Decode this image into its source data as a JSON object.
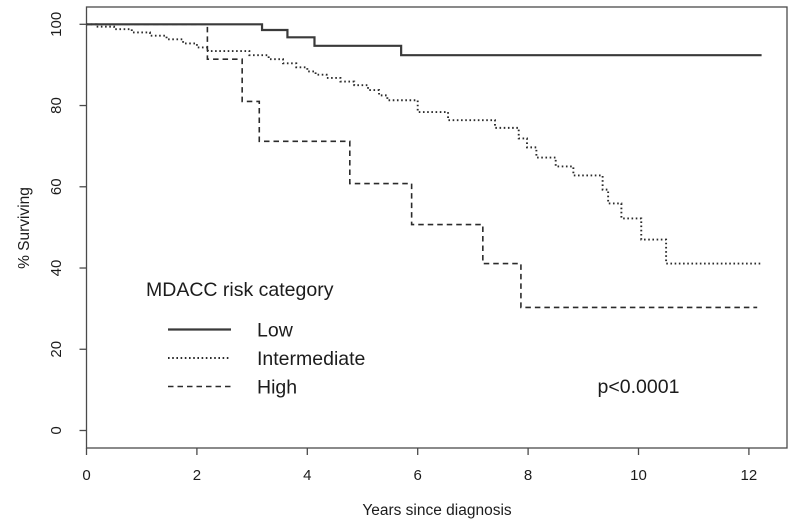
{
  "chart_data": {
    "type": "line",
    "subtype": "kaplan-meier-step-curves",
    "title": "",
    "xlabel": "Years since diagnosis",
    "ylabel": "% Surviving",
    "xlim": [
      0,
      12.68
    ],
    "ylim": [
      0,
      104
    ],
    "xticks": [
      0,
      2,
      4,
      6,
      8,
      10,
      12
    ],
    "yticks": [
      0,
      20,
      40,
      60,
      80,
      100
    ],
    "grid": false,
    "frame": true,
    "legend": {
      "title": "MDACC risk category",
      "position": "inside-lower-left",
      "entries": [
        {
          "label": "Low",
          "line_style": "solid"
        },
        {
          "label": "Intermediate",
          "line_style": "dotted"
        },
        {
          "label": "High",
          "line_style": "dashed"
        }
      ]
    },
    "annotation": {
      "text": "p<0.0001",
      "x": 10.0,
      "y": 11
    },
    "series": [
      {
        "name": "Low",
        "line_style": "solid",
        "end_x": 12.23,
        "steps": [
          [
            0,
            100
          ],
          [
            3.18,
            98.6
          ],
          [
            3.64,
            96.8
          ],
          [
            4.13,
            94.7
          ],
          [
            5.7,
            92.4
          ]
        ]
      },
      {
        "name": "Intermediate",
        "line_style": "dotted",
        "end_x": 12.23,
        "steps": [
          [
            0,
            100
          ],
          [
            0.18,
            99.4
          ],
          [
            0.5,
            98.8
          ],
          [
            0.82,
            98.0
          ],
          [
            1.15,
            97.2
          ],
          [
            1.45,
            96.3
          ],
          [
            1.75,
            95.3
          ],
          [
            2.0,
            94.3
          ],
          [
            2.2,
            93.4
          ],
          [
            2.95,
            92.4
          ],
          [
            3.3,
            91.4
          ],
          [
            3.56,
            90.4
          ],
          [
            3.8,
            89.4
          ],
          [
            4.0,
            88.4
          ],
          [
            4.15,
            87.6
          ],
          [
            4.35,
            86.8
          ],
          [
            4.6,
            85.9
          ],
          [
            4.85,
            85.0
          ],
          [
            5.1,
            83.8
          ],
          [
            5.3,
            82.5
          ],
          [
            5.45,
            81.3
          ],
          [
            6.0,
            78.4
          ],
          [
            6.55,
            76.4
          ],
          [
            7.4,
            74.5
          ],
          [
            7.83,
            71.9
          ],
          [
            7.98,
            69.7
          ],
          [
            8.15,
            67.2
          ],
          [
            8.5,
            65.0
          ],
          [
            8.82,
            62.8
          ],
          [
            9.35,
            59.3
          ],
          [
            9.45,
            55.9
          ],
          [
            9.69,
            52.2
          ],
          [
            10.05,
            47.0
          ],
          [
            10.5,
            41.1
          ]
        ]
      },
      {
        "name": "High",
        "line_style": "dashed",
        "end_x": 12.15,
        "steps": [
          [
            0,
            100
          ],
          [
            2.19,
            91.4
          ],
          [
            2.82,
            81.0
          ],
          [
            3.13,
            71.2
          ],
          [
            4.77,
            60.8
          ],
          [
            5.89,
            50.7
          ],
          [
            7.18,
            41.1
          ],
          [
            7.87,
            30.3
          ]
        ]
      }
    ]
  },
  "colors": {
    "background": "#ffffff",
    "solid_line": "#3a3a3a",
    "pattern_line": "#2b2b2b",
    "frame": "#4a4a4a",
    "text": "#1c1c1c"
  }
}
